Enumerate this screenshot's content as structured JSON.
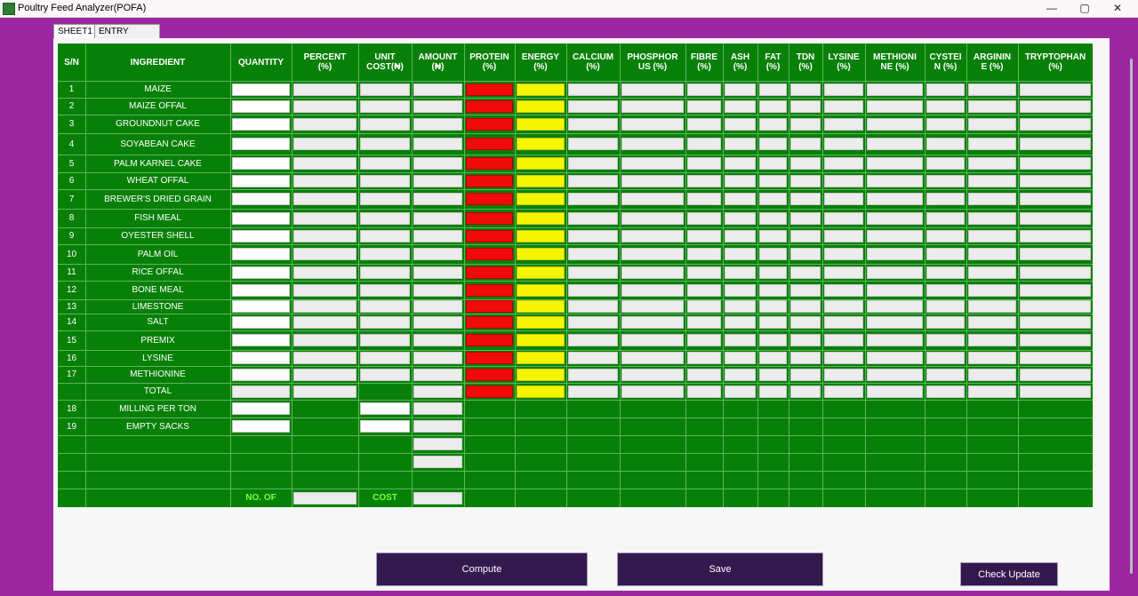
{
  "window": {
    "title": "Poultry Feed Analyzer(POFA)",
    "minimize": "—",
    "maximize": "▢",
    "close": "✕"
  },
  "tabs": [
    {
      "label": "SHEET1"
    },
    {
      "label": "ENTRY SHEET"
    }
  ],
  "headers": [
    "S/N",
    "INGREDIENT",
    "QUANTITY",
    "PERCENT\n(%)",
    "UNIT\nCOST(₦)",
    "AMOUNT\n(₦)",
    "PROTEIN\n(%)",
    "ENERGY\n(%)",
    "CALCIUM\n(%)",
    "PHOSPHOR\nUS (%)",
    "FIBRE\n(%)",
    "ASH\n(%)",
    "FAT\n(%)",
    "TDN\n(%)",
    "LYSINE\n(%)",
    "METHIONI\nNE (%)",
    "CYSTEI\nN (%)",
    "ARGININ\nE (%)",
    "TRYPTOPHAN\n(%)"
  ],
  "rows": [
    {
      "sn": "1",
      "name": "MAIZE"
    },
    {
      "sn": "2",
      "name": "MAIZE OFFAL"
    },
    {
      "sn": "3",
      "name": "GROUNDNUT CAKE"
    },
    {
      "sn": "4",
      "name": "SOYABEAN CAKE"
    },
    {
      "sn": "5",
      "name": "PALM KARNEL CAKE"
    },
    {
      "sn": "6",
      "name": "WHEAT OFFAL"
    },
    {
      "sn": "7",
      "name": "BREWER'S DRIED GRAIN"
    },
    {
      "sn": "8",
      "name": "FISH MEAL"
    },
    {
      "sn": "9",
      "name": "OYESTER SHELL"
    },
    {
      "sn": "10",
      "name": "PALM OIL"
    },
    {
      "sn": "11",
      "name": "RICE OFFAL"
    },
    {
      "sn": "12",
      "name": "BONE MEAL"
    },
    {
      "sn": "13",
      "name": "LIMESTONE"
    },
    {
      "sn": "14",
      "name": "SALT"
    },
    {
      "sn": "15",
      "name": "PREMIX"
    },
    {
      "sn": "16",
      "name": "LYSINE"
    },
    {
      "sn": "17",
      "name": "METHIONINE"
    },
    {
      "sn": "",
      "name": "TOTAL"
    },
    {
      "sn": "18",
      "name": "MILLING PER TON"
    },
    {
      "sn": "19",
      "name": "EMPTY SACKS"
    }
  ],
  "footer": {
    "no_of": "NO. OF",
    "cost": "COST"
  },
  "buttons": {
    "compute": "Compute",
    "save": "Save",
    "check_update": "Check Update"
  },
  "colors": {
    "grid_green": "#088008",
    "protein_red": "#f00a0a",
    "energy_yellow": "#f5f500",
    "frame_purple": "#9c27a3",
    "button_purple": "#34194f"
  }
}
